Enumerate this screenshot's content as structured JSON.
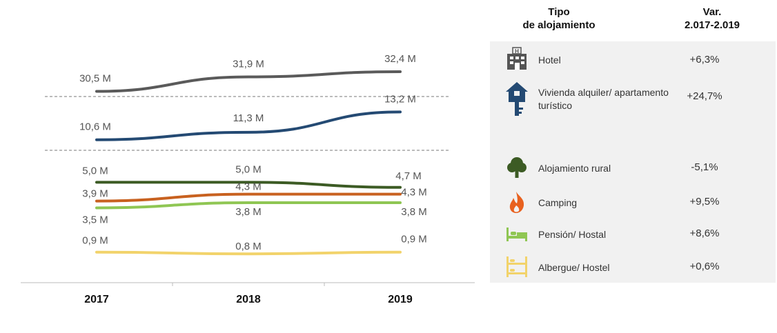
{
  "chart_data": {
    "type": "line",
    "categories": [
      "2017",
      "2018",
      "2019"
    ],
    "series": [
      {
        "values": [
          30.5,
          31.9,
          32.4
        ],
        "labels": [
          "30,5 M",
          "31,9 M",
          "32,4 M"
        ],
        "color": "#5a5a5a"
      },
      {
        "values": [
          10.6,
          11.3,
          13.2
        ],
        "labels": [
          "10,6 M",
          "11,3 M",
          "13,2 M"
        ],
        "color": "#244a73"
      },
      {
        "values": [
          5.0,
          5.0,
          4.7
        ],
        "labels": [
          "5,0 M",
          "5,0 M",
          "4,7 M"
        ],
        "color": "#3c5b24"
      },
      {
        "values": [
          3.9,
          4.3,
          4.3
        ],
        "labels": [
          "3,9 M",
          "4,3 M",
          "4,3 M"
        ],
        "color": "#c8611f"
      },
      {
        "values": [
          3.5,
          3.8,
          3.8
        ],
        "labels": [
          "3,5 M",
          "3,8 M",
          "3,8 M"
        ],
        "color": "#8fc653"
      },
      {
        "values": [
          0.9,
          0.8,
          0.9
        ],
        "labels": [
          "0,9 M",
          "0,8 M",
          "0,9 M"
        ],
        "color": "#f2d36b"
      }
    ]
  },
  "table": {
    "header_type": [
      "Tipo",
      "de alojamiento"
    ],
    "header_var": [
      "Var.",
      "2.017-2.019"
    ],
    "rows": [
      {
        "icon": "hotel-icon",
        "name": "Hotel",
        "value": "+6,3%"
      },
      {
        "icon": "house-key-icon",
        "name": "Vivienda alquiler/ apartamento turístico",
        "value": "+24,7%"
      },
      {
        "icon": "tree-icon",
        "name": "Alojamiento  rural",
        "value": "-5,1%"
      },
      {
        "icon": "fire-icon",
        "name": "Camping",
        "value": "+9,5%"
      },
      {
        "icon": "bed-icon",
        "name": "Pensión/  Hostal",
        "value": "+8,6%"
      },
      {
        "icon": "bunk-bed-icon",
        "name": "Albergue/ Hostel",
        "value": "+0,6%"
      }
    ]
  },
  "colors": {
    "hotel": "#5a5a5a",
    "vivienda": "#244a73",
    "rural": "#3c5b24",
    "camping": "#e8611f",
    "pension": "#8fc653",
    "albergue": "#f2d36b"
  }
}
